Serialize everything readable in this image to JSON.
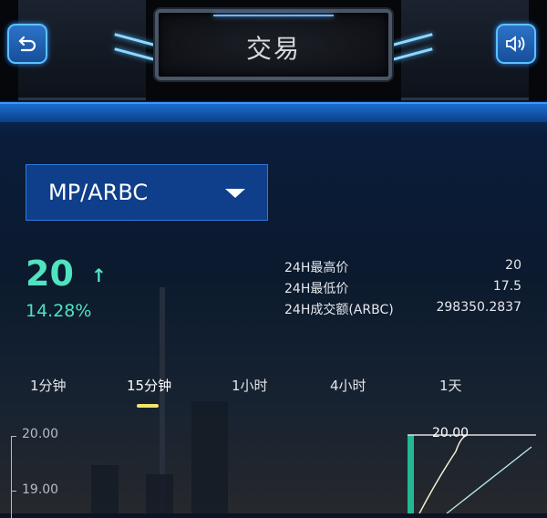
{
  "header": {
    "title": "交易",
    "back_icon": "back-arrow-icon",
    "sound_icon": "speaker-icon"
  },
  "pair_selector": {
    "value": "MP/ARBC"
  },
  "ticker": {
    "price": "20",
    "direction": "up",
    "change": "14.28%",
    "color": "#4fe3c0"
  },
  "stats": [
    {
      "label": "24H最高价",
      "value": "20"
    },
    {
      "label": "24H最低价",
      "value": "17.5"
    },
    {
      "label": "24H成交额(ARBC)",
      "value": "298350.2837"
    }
  ],
  "intervals": {
    "items": [
      "1分钟",
      "15分钟",
      "1小时",
      "4小时",
      "1天"
    ],
    "active": "15分钟"
  },
  "chart": {
    "y_ticks": [
      "20.00",
      "19.00"
    ],
    "depth_label": "20.00",
    "accent": "#22b894"
  }
}
